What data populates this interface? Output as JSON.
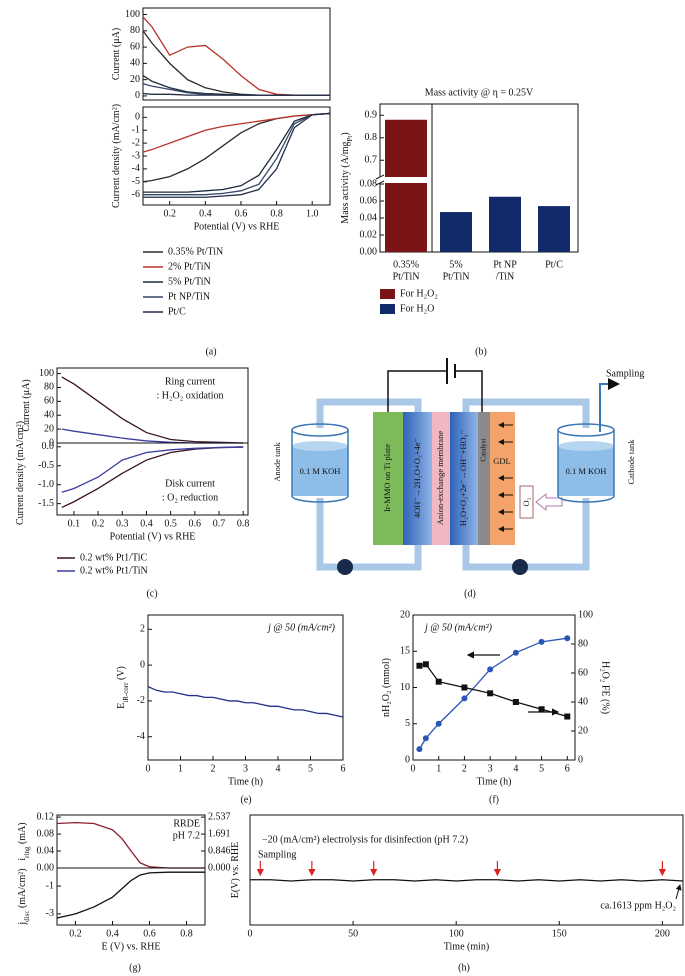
{
  "chart_data": [
    {
      "type": "line",
      "ylabel": "Current (μA)",
      "x": [
        0.05,
        0.1,
        0.2,
        0.3,
        0.4,
        0.5,
        0.6,
        0.7,
        0.8,
        0.9,
        1.0,
        1.1
      ],
      "xlim": [
        0.05,
        1.1
      ],
      "ylim": [
        -5,
        108
      ],
      "yticks": [
        0,
        20,
        40,
        60,
        80,
        100
      ],
      "series": [
        {
          "color": "#2b2b2b",
          "values": [
            80,
            65,
            40,
            20,
            10,
            5,
            2,
            1,
            1,
            1,
            1,
            1
          ]
        },
        {
          "color": "#b8322a",
          "values": [
            97,
            85,
            50,
            60,
            62,
            45,
            25,
            8,
            2,
            1,
            1,
            1
          ]
        },
        {
          "color": "#1e2a3a",
          "values": [
            25,
            18,
            10,
            5,
            3,
            2,
            1,
            1,
            1,
            1,
            1,
            1
          ]
        },
        {
          "color": "#34466a",
          "values": [
            15,
            12,
            8,
            4,
            2,
            1,
            1,
            1,
            1,
            1,
            1,
            1
          ]
        },
        {
          "color": "#222c44",
          "values": [
            3,
            2,
            2,
            1,
            1,
            1,
            1,
            1,
            1,
            1,
            1,
            1
          ]
        }
      ]
    },
    {
      "type": "line",
      "ylabel": "Current density (mA/cm²)",
      "xlabel": "Potential (V) vs RHE",
      "panel": "(a)",
      "x": [
        0.05,
        0.1,
        0.2,
        0.3,
        0.4,
        0.5,
        0.6,
        0.7,
        0.8,
        0.9,
        1.0,
        1.1
      ],
      "xlim": [
        0.05,
        1.1
      ],
      "xticks": [
        0.2,
        0.4,
        0.6,
        0.8,
        {
          "value": 1,
          "label": "1.0"
        }
      ],
      "ylim": [
        -6.8,
        0.8
      ],
      "yticks": [
        0,
        -1,
        -2,
        -3,
        -4,
        -5,
        -6
      ],
      "series": [
        {
          "name": "0.35% Pt/TiN",
          "color": "#2b2b2b",
          "values": [
            -5.0,
            -4.9,
            -4.6,
            -4.0,
            -3.2,
            -2.2,
            -1.2,
            -0.5,
            -0.1,
            0.1,
            0.2,
            0.3
          ]
        },
        {
          "name": "2% Pt/TiN",
          "color": "#b8322a",
          "values": [
            -2.7,
            -2.5,
            -2.0,
            -1.5,
            -1.0,
            -0.7,
            -0.5,
            -0.3,
            -0.1,
            0.1,
            0.2,
            0.3
          ]
        },
        {
          "name": "5% Pt/TiN",
          "color": "#1e2a3a",
          "values": [
            -5.8,
            -5.8,
            -5.8,
            -5.8,
            -5.7,
            -5.6,
            -5.3,
            -4.5,
            -2.5,
            -0.3,
            0.2,
            0.3
          ]
        },
        {
          "name": "Pt NP/TiN",
          "color": "#34466a",
          "values": [
            -6.0,
            -6.0,
            -6.0,
            -6.0,
            -6.0,
            -5.9,
            -5.7,
            -5.2,
            -3.2,
            -0.5,
            0.2,
            0.3
          ]
        },
        {
          "name": "Pt/C",
          "color": "#222c44",
          "values": [
            -6.2,
            -6.2,
            -6.2,
            -6.2,
            -6.2,
            -6.1,
            -6.0,
            -5.6,
            -4.0,
            -0.8,
            0.2,
            0.3
          ]
        }
      ]
    },
    {
      "type": "bar",
      "title": "Mass activity @ η = 0.25V",
      "panel": "(b)",
      "ylabel": "Mass activity (A/mg",
      "ylabel_sub": "Pt",
      "ylabel_unit": ")",
      "categories": [
        [
          "0.35%",
          "Pt/TiN"
        ],
        [
          "5%",
          "Pt/TiN"
        ],
        [
          "Pt NP",
          "/TiN"
        ],
        [
          "Pt/C"
        ]
      ],
      "values": [
        0.88,
        0.047,
        0.065,
        0.054
      ],
      "colors": [
        "#7a1416",
        "#102a6a",
        "#102a6a",
        "#102a6a"
      ],
      "ylim": [
        0,
        0.95
      ],
      "ybreak": [
        0.08,
        0.63
      ],
      "yticks": [
        {
          "value": 0,
          "label": "0.00"
        },
        0.02,
        0.04,
        0.06,
        0.08,
        0.7,
        0.8,
        0.9
      ],
      "legend": [
        {
          "label": "For H₂O₂",
          "color": "#7a1416"
        },
        {
          "label": "For H₂O",
          "color": "#102a6a"
        }
      ]
    },
    {
      "type": "line",
      "ylabel": "Current (μA)",
      "notes": [
        "Ring current",
        ": H₂O₂ oxidation"
      ],
      "x": [
        0.05,
        0.1,
        0.2,
        0.3,
        0.4,
        0.5,
        0.6,
        0.7,
        0.8
      ],
      "xlim": [
        0.03,
        0.82
      ],
      "ylim": [
        0,
        108
      ],
      "yticks": [
        0,
        20,
        40,
        60,
        80,
        100
      ],
      "series": [
        {
          "color": "#3a1422",
          "values": [
            95,
            85,
            60,
            35,
            15,
            5,
            2,
            1,
            0
          ]
        },
        {
          "color": "#3c3ca0",
          "values": [
            20,
            17,
            12,
            7,
            3,
            1,
            0,
            0,
            0
          ]
        }
      ]
    },
    {
      "type": "line",
      "ylabel": "Current density (mA/cm²)",
      "xlabel": "Potential (V) vs RHE",
      "panel": "(c)",
      "notes": [
        "Disk current",
        ": O₂ reduction"
      ],
      "x": [
        0.05,
        0.1,
        0.2,
        0.3,
        0.4,
        0.5,
        0.6,
        0.7,
        0.8
      ],
      "xlim": [
        0.03,
        0.82
      ],
      "xticks": [
        0.1,
        0.2,
        0.3,
        0.4,
        0.5,
        0.6,
        0.7,
        0.8
      ],
      "ylim": [
        -1.8,
        0.1
      ],
      "yticks": [
        {
          "value": 0,
          "label": "0.0"
        },
        -0.5,
        {
          "value": -1,
          "label": "-1.0"
        },
        -1.5
      ],
      "series": [
        {
          "name": "0.2 wt% Pt1/TiC",
          "color": "#3a1422",
          "values": [
            -1.6,
            -1.45,
            -1.1,
            -0.7,
            -0.35,
            -0.15,
            -0.06,
            -0.02,
            0
          ]
        },
        {
          "name": "0.2 wt% Pt1/TiN",
          "color": "#3c3ca0",
          "values": [
            -1.2,
            -1.1,
            -0.8,
            -0.35,
            -0.15,
            -0.08,
            -0.04,
            -0.02,
            -0.01
          ]
        }
      ]
    },
    {
      "type": "line",
      "ylabel": "E",
      "ylabel_sub": "iR-corr",
      "ylabel_unit": " (V)",
      "xlabel": "Time (h)",
      "panel": "(e)",
      "notes": [
        "j @ 50 (mA/cm²)"
      ],
      "x": [
        0,
        0.25,
        0.5,
        0.75,
        1,
        1.25,
        1.5,
        1.75,
        2,
        2.25,
        2.5,
        2.75,
        3,
        3.25,
        3.5,
        3.75,
        4,
        4.25,
        4.5,
        4.75,
        5,
        5.25,
        5.5,
        5.75,
        6
      ],
      "xlim": [
        0,
        6
      ],
      "xticks": [
        0,
        1,
        2,
        3,
        4,
        5,
        6
      ],
      "ylim": [
        -5.3,
        2.8
      ],
      "yticks": [
        2,
        0,
        -2,
        -4
      ],
      "series": [
        {
          "color": "#23318a",
          "values": [
            -1.2,
            -1.4,
            -1.5,
            -1.5,
            -1.6,
            -1.7,
            -1.7,
            -1.8,
            -1.8,
            -1.9,
            -2.0,
            -2.0,
            -2.1,
            -2.1,
            -2.2,
            -2.3,
            -2.3,
            -2.4,
            -2.5,
            -2.5,
            -2.6,
            -2.7,
            -2.7,
            -2.8,
            -2.9
          ]
        }
      ]
    },
    {
      "type": "line",
      "ylabel": "nH₂O₂ (mmol)",
      "y2label": "H₂O₂ FE (%)",
      "xlabel": "Time (h)",
      "panel": "(f)",
      "notes": [
        "j @ 50 (mA/cm²)"
      ],
      "x": [
        0.25,
        0.5,
        1,
        2,
        3,
        4,
        5,
        6
      ],
      "xlim": [
        0,
        6.3
      ],
      "xticks": [
        0,
        1,
        2,
        3,
        4,
        5,
        6
      ],
      "ylim": [
        0,
        20
      ],
      "yticks": [
        0,
        5,
        10,
        15,
        20
      ],
      "y2lim": [
        0,
        100
      ],
      "y2ticks": [
        0,
        20,
        40,
        60,
        80,
        100
      ],
      "series": [
        {
          "color": "#2c55b8",
          "marker": "circle",
          "values": [
            1.5,
            3,
            5,
            8.5,
            12.5,
            14.8,
            16.3,
            16.8
          ]
        },
        {
          "color": "#111111",
          "marker": "square",
          "axis": "y2",
          "values": [
            65,
            66,
            54,
            50,
            46,
            40,
            35,
            30
          ]
        }
      ]
    },
    {
      "type": "line",
      "ylabel": "i",
      "ylabel_sub": "ring",
      "ylabel_unit": " (mA)",
      "notes": [
        "RRDE",
        "pH 7.2"
      ],
      "x": [
        0.1,
        0.2,
        0.3,
        0.4,
        0.45,
        0.5,
        0.55,
        0.6,
        0.7,
        0.8,
        0.9
      ],
      "xlim": [
        0.1,
        0.9
      ],
      "ylim": [
        0,
        0.125
      ],
      "yticks": [
        {
          "value": 0,
          "label": "0.00"
        },
        0.04,
        0.08,
        0.12
      ],
      "y2lim": [
        0,
        2.643
      ],
      "y2ticks": [
        {
          "value": 0,
          "label": "0.000"
        },
        0.846,
        1.691,
        2.537
      ],
      "series": [
        {
          "color": "#8b2030",
          "values": [
            0.105,
            0.107,
            0.105,
            0.09,
            0.07,
            0.04,
            0.012,
            0.003,
            0,
            0,
            0
          ]
        }
      ]
    },
    {
      "type": "line",
      "ylabel": "j",
      "ylabel_sub": "disc",
      "ylabel_unit": " (mA/cm²)",
      "xlabel": "E (V) vs. RHE",
      "panel": "(g)",
      "x": [
        0.1,
        0.2,
        0.3,
        0.4,
        0.45,
        0.5,
        0.55,
        0.6,
        0.7,
        0.8,
        0.9
      ],
      "xlim": [
        0.1,
        0.9
      ],
      "xticks": [
        0.2,
        0.4,
        0.6,
        0.8
      ],
      "ylim": [
        -3.8,
        0.3
      ],
      "yticks": [
        -1,
        -3
      ],
      "series": [
        {
          "color": "#111111",
          "values": [
            -3.3,
            -3.0,
            -2.5,
            -1.8,
            -1.2,
            -0.6,
            -0.2,
            -0.05,
            0,
            0,
            0
          ]
        }
      ]
    },
    {
      "type": "line",
      "ylabel": "E(V) vs. RHE",
      "xlabel": "Time (min)",
      "panel": "(h)",
      "notes": [
        "−20 (mA/cm²) electrolysis for disinfection (pH 7.2)",
        "Sampling",
        "ca.1613 ppm H₂O₂"
      ],
      "x": [
        0,
        10,
        20,
        30,
        40,
        50,
        60,
        70,
        80,
        90,
        100,
        110,
        120,
        130,
        140,
        150,
        160,
        170,
        180,
        190,
        200,
        210
      ],
      "xlim": [
        0,
        210
      ],
      "xticks": [
        0,
        50,
        100,
        150,
        200
      ],
      "ylim": [
        0,
        0.9
      ],
      "sampling_x": [
        5,
        30,
        60,
        120,
        200
      ],
      "series": [
        {
          "color": "#111111",
          "values": [
            0.37,
            0.37,
            0.36,
            0.37,
            0.37,
            0.36,
            0.37,
            0.37,
            0.36,
            0.37,
            0.36,
            0.37,
            0.37,
            0.36,
            0.37,
            0.36,
            0.37,
            0.36,
            0.37,
            0.36,
            0.37,
            0.36
          ]
        }
      ]
    }
  ],
  "diagram": {
    "sampling": "Sampling",
    "anode_tank": "Anode tank",
    "cathode_tank": "Cathode tank",
    "anode_electrolyte": "0.1 M KOH",
    "cathode_electrolyte": "0.1 M KOH",
    "anode_plate": "Ir-MMO on Ti plate",
    "anode_reaction": "4OH⁻→2H₂O+O₂+4e⁻",
    "membrane": "Anion-exchange membrane",
    "cathode_reaction": "H₂O+O₂+2e⁻→OH⁻+HO₂⁻",
    "catalyst": "Catalyst",
    "gdl": "GDL",
    "oxygen": "O₂",
    "panel": "(d)"
  }
}
